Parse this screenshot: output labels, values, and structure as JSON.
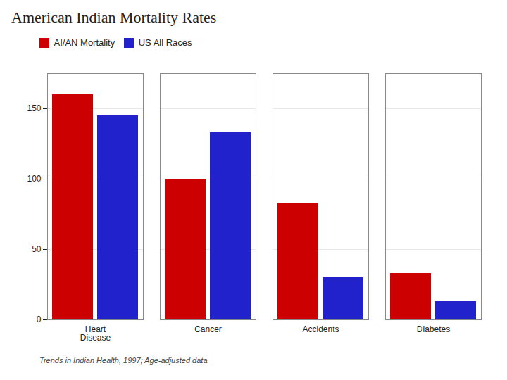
{
  "chart_data": {
    "type": "bar",
    "title": "American Indian Mortality Rates",
    "subtitle": "Trends in Indian Health, 1997; Age-adjusted data",
    "categories": [
      "Heart\nDisease",
      "Cancer",
      "Accidents",
      "Diabetes"
    ],
    "series": [
      {
        "name": "AI/AN Mortality",
        "color": "#cc0000",
        "values": [
          160,
          100,
          83,
          33
        ]
      },
      {
        "name": "US All Races",
        "color": "#2222cc",
        "values": [
          145,
          133,
          30,
          13
        ]
      }
    ],
    "ylim": [
      0,
      175
    ],
    "yticks": [
      0,
      50,
      100,
      150
    ],
    "grid": true,
    "legend": "top"
  }
}
